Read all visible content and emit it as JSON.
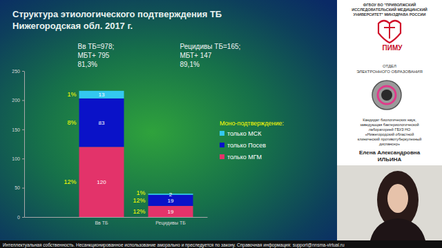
{
  "chart_data": {
    "type": "bar",
    "stacked": true,
    "data_labels": true,
    "grid": false,
    "legend": "right",
    "title": [
      "Структура этиологического подтверждения ТБ",
      "Нижегородская обл. 2017 г."
    ],
    "annotations": [
      [
        "Вв ТБ=978;",
        "МБТ+  795",
        "81,3%"
      ],
      [
        "Рецидивы ТБ=165;",
        "МБТ+  147",
        "89,1%"
      ]
    ],
    "legend_title": "Моно-подтверждение:",
    "categories": [
      "Вв ТБ",
      "Рецидивы ТБ"
    ],
    "series": [
      {
        "name": "только МГМ",
        "color": "#e3336a",
        "values": [
          120,
          19
        ],
        "share_labels": [
          "12%",
          "12%"
        ]
      },
      {
        "name": "только Посев",
        "color": "#0a12c8",
        "values": [
          83,
          19
        ],
        "share_labels": [
          "8%",
          "12%"
        ]
      },
      {
        "name": "только МСК",
        "color": "#33c8f0",
        "values": [
          13,
          2
        ],
        "share_labels": [
          "1%",
          "1%"
        ]
      }
    ],
    "ylim": [
      0,
      250
    ],
    "yticks": [
      0,
      50,
      100,
      150,
      200,
      250
    ]
  },
  "page": {
    "header_lines": [
      "ФГБОУ ВО \"ПРИВОЛЖСКИЙ",
      "ИССЛЕДОВАТЕЛЬСКИЙ МЕДИЦИНСКИЙ",
      "УНИВЕРСИТЕТ\" МИНЗДРАВА РОССИИ"
    ],
    "logo_text": "ПИМУ",
    "department": [
      "ОТДЕЛ",
      "ЭЛЕКТРОННОГО  ОБРАЗОВАНИЯ"
    ],
    "speaker_info": [
      "Кандидат биологических наук,",
      "заведующая бактериологической",
      "лабораторией ГБУЗ НО",
      "«Нижегородский областной",
      "клинический противотуберкулезный",
      "диспансер»"
    ],
    "speaker_name": [
      "Елена Александровна",
      "ИЛЬИНА"
    ],
    "footer": "Интеллектуальная собственность. Несанкционированное использование аморально и преследуется по закону. Справочная информация: support@nnsma-virtual.ru"
  }
}
